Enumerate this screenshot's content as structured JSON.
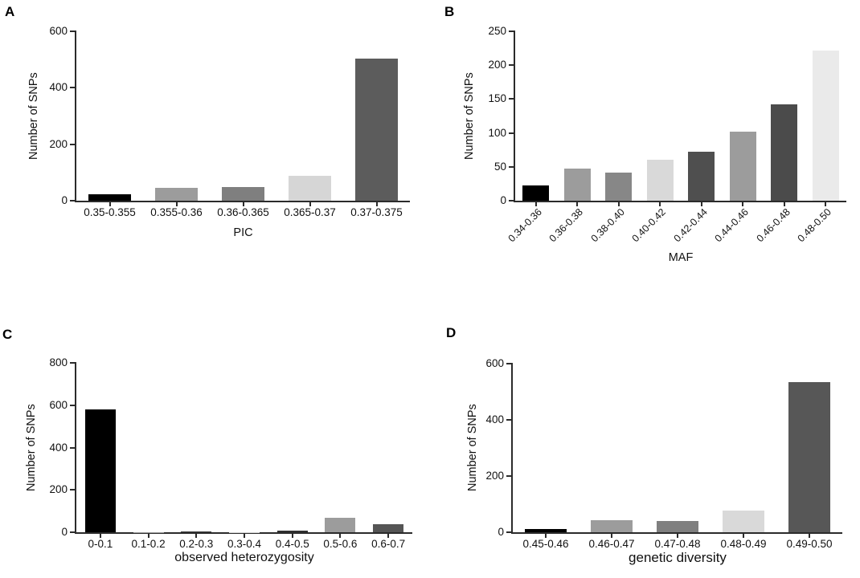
{
  "styles": {
    "background": "#ffffff",
    "axis_color": "#2b2b2b",
    "text_color": "#111111"
  },
  "chart_data": [
    {
      "type": "bar",
      "panel_label": "A",
      "ylabel": "Number of SNPs",
      "xlabel": "PIC",
      "categories": [
        "0.35-0.355",
        "0.355-0.36",
        "0.36-0.365",
        "0.365-0.37",
        "0.37-0.375"
      ],
      "values": [
        24,
        45,
        49,
        89,
        504
      ],
      "bar_colors": [
        "#000000",
        "#9c9c9c",
        "#7f7f7f",
        "#d6d6d6",
        "#5c5c5c"
      ],
      "ylim": [
        0,
        600
      ],
      "yticks": [
        0,
        200,
        400,
        600
      ],
      "xtick_rotation": 0,
      "grid": false,
      "legend": "none"
    },
    {
      "type": "bar",
      "panel_label": "B",
      "ylabel": "Number of SNPs",
      "xlabel": "MAF",
      "categories": [
        "0.34-0.36",
        "0.36-0.38",
        "0.38-0.40",
        "0.40-0.42",
        "0.42-0.44",
        "0.44-0.46",
        "0.46-0.48",
        "0.48-0.50"
      ],
      "values": [
        23,
        48,
        42,
        61,
        72,
        102,
        142,
        222
      ],
      "bar_colors": [
        "#000000",
        "#9c9c9c",
        "#878787",
        "#d9d9d9",
        "#4f4f4f",
        "#9c9c9c",
        "#4b4b4b",
        "#eaeaea"
      ],
      "ylim": [
        0,
        250
      ],
      "yticks": [
        0,
        50,
        100,
        150,
        200,
        250
      ],
      "xtick_rotation": -45,
      "grid": false,
      "legend": "none"
    },
    {
      "type": "bar",
      "panel_label": "C",
      "ylabel": "Number of SNPs",
      "xlabel": "observed heterozygosity",
      "categories": [
        "0-0.1",
        "0.1-0.2",
        "0.2-0.3",
        "0.3-0.4",
        "0.4-0.5",
        "0.5-0.6",
        "0.6-0.7"
      ],
      "values": [
        580,
        1,
        3,
        1,
        7,
        70,
        38
      ],
      "bar_colors": [
        "#000000",
        "#9c9c9c",
        "#3c3c3c",
        "#d6d6d6",
        "#303030",
        "#9c9c9c",
        "#555555"
      ],
      "ylim": [
        0,
        800
      ],
      "yticks": [
        0,
        200,
        400,
        600,
        800
      ],
      "xtick_rotation": 0,
      "grid": false,
      "legend": "none"
    },
    {
      "type": "bar",
      "panel_label": "D",
      "ylabel": "Number of SNPs",
      "xlabel": "genetic diversity",
      "categories": [
        "0.45-0.46",
        "0.46-0.47",
        "0.47-0.48",
        "0.48-0.49",
        "0.49-0.50"
      ],
      "values": [
        12,
        44,
        41,
        78,
        534
      ],
      "bar_colors": [
        "#000000",
        "#9c9c9c",
        "#7f7f7f",
        "#d9d9d9",
        "#575757"
      ],
      "ylim": [
        0,
        600
      ],
      "yticks": [
        0,
        200,
        400,
        600
      ],
      "xtick_rotation": 0,
      "grid": false,
      "legend": "none"
    }
  ]
}
